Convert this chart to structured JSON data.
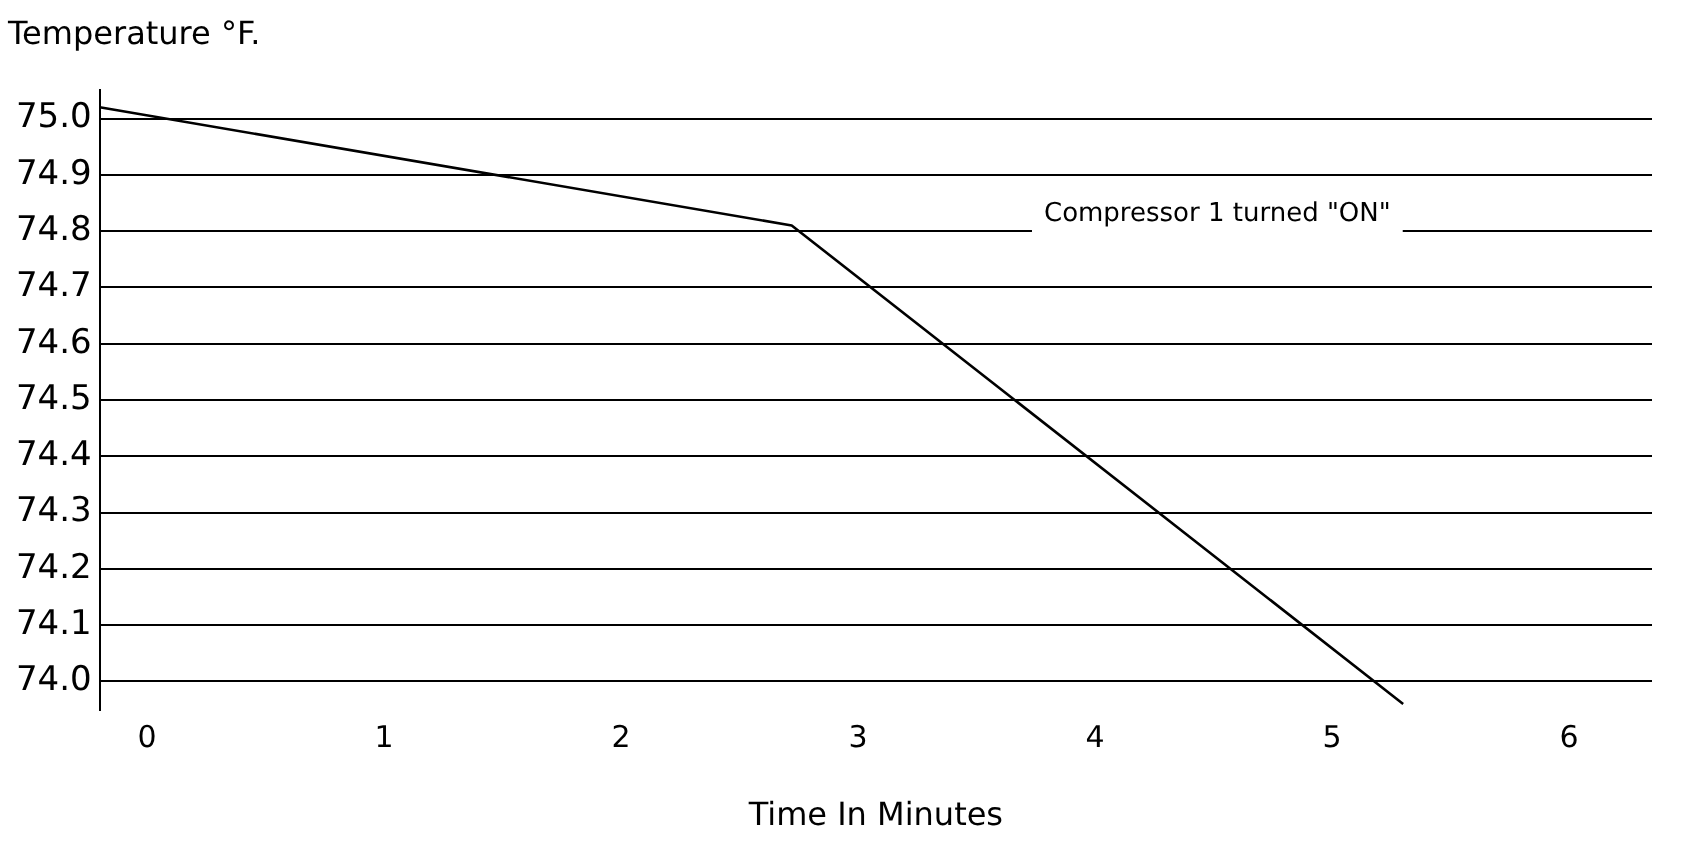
{
  "chart_data": {
    "type": "line",
    "title": "Temperature °F.",
    "xlabel": "Time In Minutes",
    "x": [
      -0.2,
      2.72,
      5.3
    ],
    "values": [
      75.02,
      74.81,
      73.96
    ],
    "color": "#000000",
    "xlim": [
      -0.2,
      6.35
    ],
    "xticks": [
      0,
      1,
      2,
      3,
      4,
      5,
      6
    ],
    "ylim": [
      73.95,
      75.05
    ],
    "yticks": [
      {
        "value": 74.0,
        "label": "74.0"
      },
      {
        "value": 74.1,
        "label": "74.1"
      },
      {
        "value": 74.2,
        "label": "74.2"
      },
      {
        "value": 74.3,
        "label": "74.3"
      },
      {
        "value": 74.4,
        "label": "74.4"
      },
      {
        "value": 74.5,
        "label": "74.5"
      },
      {
        "value": 74.6,
        "label": "74.6"
      },
      {
        "value": 74.7,
        "label": "74.7"
      },
      {
        "value": 74.8,
        "label": "74.8"
      },
      {
        "value": 74.9,
        "label": "74.9"
      },
      {
        "value": 75.0,
        "label": "75.0"
      }
    ],
    "grid": "y",
    "legend": false,
    "marker": "none",
    "line_style": "solid",
    "annotations": [
      "Compressor 1 turned \"ON\""
    ]
  }
}
